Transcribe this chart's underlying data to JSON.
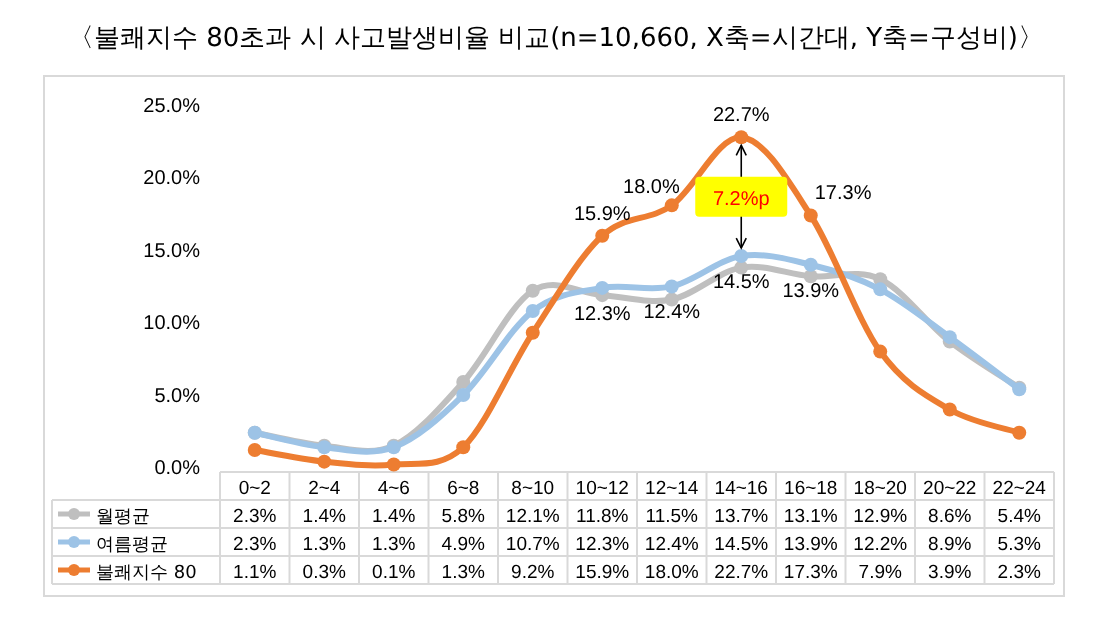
{
  "chart_data": {
    "type": "line",
    "title": "〈불쾌지수 80초과 시 사고발생비율 비교(n=10,660, X축=시간대, Y축=구성비)〉",
    "categories": [
      "0~2",
      "2~4",
      "4~6",
      "6~8",
      "8~10",
      "10~12",
      "12~14",
      "14~16",
      "16~18",
      "18~20",
      "20~22",
      "22~24"
    ],
    "series": [
      {
        "name": "월평균",
        "color": "#bfbfbf",
        "values": [
          2.3,
          1.4,
          1.4,
          5.8,
          12.1,
          11.8,
          11.5,
          13.7,
          13.1,
          12.9,
          8.6,
          5.4
        ],
        "value_labels": [
          "2.3%",
          "1.4%",
          "1.4%",
          "5.8%",
          "12.1%",
          "11.8%",
          "11.5%",
          "13.7%",
          "13.1%",
          "12.9%",
          "8.6%",
          "5.4%"
        ]
      },
      {
        "name": "여름평균",
        "color": "#9dc3e6",
        "values": [
          2.3,
          1.3,
          1.3,
          4.9,
          10.7,
          12.3,
          12.4,
          14.5,
          13.9,
          12.2,
          8.9,
          5.3
        ],
        "value_labels": [
          "2.3%",
          "1.3%",
          "1.3%",
          "4.9%",
          "10.7%",
          "12.3%",
          "12.4%",
          "14.5%",
          "13.9%",
          "12.2%",
          "8.9%",
          "5.3%"
        ]
      },
      {
        "name": "불쾌지수 80",
        "color": "#ed7d31",
        "values": [
          1.1,
          0.3,
          0.1,
          1.3,
          9.2,
          15.9,
          18.0,
          22.7,
          17.3,
          7.9,
          3.9,
          2.3
        ],
        "value_labels": [
          "1.1%",
          "0.3%",
          "0.1%",
          "1.3%",
          "9.2%",
          "15.9%",
          "18.0%",
          "22.7%",
          "17.3%",
          "7.9%",
          "3.9%",
          "2.3%"
        ]
      }
    ],
    "ylim": [
      0,
      25
    ],
    "yticks": [
      {
        "value": 0,
        "label": "0.0%"
      },
      {
        "value": 5,
        "label": "5.0%"
      },
      {
        "value": 10,
        "label": "10.0%"
      },
      {
        "value": 15,
        "label": "15.0%"
      },
      {
        "value": 20,
        "label": "20.0%"
      },
      {
        "value": 25,
        "label": "25.0%"
      }
    ],
    "annotations": [
      {
        "text": "15.9%",
        "x": "10~12",
        "y": 15.9
      },
      {
        "text": "18.0%",
        "x": "12~14",
        "y": 18.0
      },
      {
        "text": "22.7%",
        "x": "14~16",
        "y": 22.7
      },
      {
        "text": "17.3%",
        "x": "16~18",
        "y": 17.3
      },
      {
        "text": "12.3%",
        "x": "10~12",
        "y": 12.3
      },
      {
        "text": "12.4%",
        "x": "12~14",
        "y": 12.4
      },
      {
        "text": "14.5%",
        "x": "14~16",
        "y": 14.5
      },
      {
        "text": "13.9%",
        "x": "16~18",
        "y": 13.9
      },
      "7.2%p"
    ],
    "marker": "circle",
    "line_style": "solid",
    "grid": false,
    "legend": "bottom left"
  }
}
